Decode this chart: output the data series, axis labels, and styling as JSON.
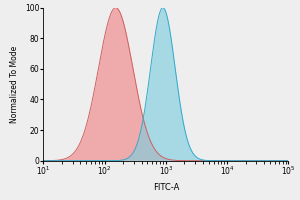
{
  "title": "",
  "xlabel": "FITC-A",
  "ylabel": "Normalized To Mode",
  "xlim_log": [
    1,
    5
  ],
  "ylim": [
    0,
    100
  ],
  "red_peak_log": 2.18,
  "red_sigma": 0.28,
  "blue_peak_log": 2.95,
  "blue_sigma": 0.2,
  "red_color": "#F08888",
  "blue_color": "#80CEDE",
  "red_edge": "#D06060",
  "blue_edge": "#30AACC",
  "alpha": 0.65,
  "yticks": [
    0,
    20,
    40,
    60,
    80,
    100
  ],
  "xtick_powers": [
    1,
    2,
    3,
    4,
    5
  ],
  "background": "#eeeeee"
}
